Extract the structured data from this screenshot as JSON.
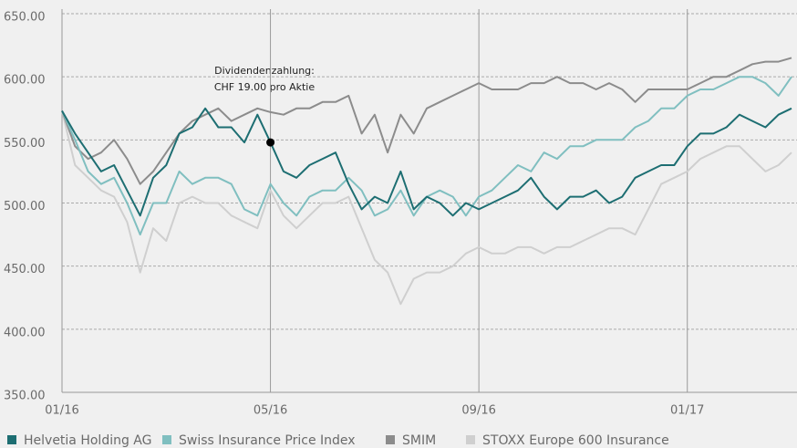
{
  "chart_data": {
    "type": "line",
    "annotation": [
      "Dividendenzahlung:",
      "CHF 19.00 pro Aktie"
    ],
    "annotation_point": "Helvetia Holding AG",
    "categories": [
      "01/16",
      null,
      null,
      null,
      null,
      null,
      null,
      null,
      null,
      null,
      null,
      null,
      null,
      null,
      null,
      null,
      "05/16",
      null,
      null,
      null,
      null,
      null,
      null,
      null,
      null,
      null,
      null,
      null,
      null,
      null,
      null,
      null,
      "09/16",
      null,
      null,
      null,
      null,
      null,
      null,
      null,
      null,
      null,
      null,
      null,
      null,
      null,
      null,
      null,
      "01/17",
      null,
      null,
      null,
      null,
      null,
      null,
      null,
      null
    ],
    "ylim": [
      350,
      650
    ],
    "yticks": [
      {
        "value": 350,
        "label": "350.00"
      },
      {
        "value": 400,
        "label": "400.00"
      },
      {
        "value": 450,
        "label": "450.00"
      },
      {
        "value": 500,
        "label": "500.00"
      },
      {
        "value": 550,
        "label": "550.00"
      },
      {
        "value": 600,
        "label": "600.00"
      },
      {
        "value": 650,
        "label": "650.00"
      }
    ],
    "grid": true,
    "legend": "bottom",
    "series": [
      {
        "name": "Helvetia Holding AG",
        "color": "#1d6e72",
        "values": [
          573,
          555,
          540,
          525,
          530,
          510,
          490,
          520,
          530,
          555,
          560,
          575,
          560,
          560,
          548,
          570,
          548,
          525,
          520,
          530,
          535,
          540,
          515,
          495,
          505,
          500,
          525,
          495,
          505,
          500,
          490,
          500,
          495,
          500,
          505,
          510,
          520,
          505,
          495,
          505,
          505,
          510,
          500,
          505,
          520,
          525,
          530,
          530,
          545,
          555,
          555,
          560,
          570,
          565,
          560,
          570,
          575
        ]
      },
      {
        "name": "Swiss Insurance Price Index",
        "color": "#80bfc0",
        "values": [
          573,
          550,
          525,
          515,
          520,
          500,
          475,
          500,
          500,
          525,
          515,
          520,
          520,
          515,
          495,
          490,
          515,
          500,
          490,
          505,
          510,
          510,
          520,
          510,
          490,
          495,
          510,
          490,
          505,
          510,
          505,
          490,
          505,
          510,
          520,
          530,
          525,
          540,
          535,
          545,
          545,
          550,
          550,
          550,
          560,
          565,
          575,
          575,
          585,
          590,
          590,
          595,
          600,
          600,
          595,
          585,
          600
        ]
      },
      {
        "name": "SMIM",
        "color": "#8c8c8c",
        "values": [
          573,
          545,
          535,
          540,
          550,
          535,
          515,
          525,
          540,
          555,
          565,
          570,
          575,
          565,
          570,
          575,
          572,
          570,
          575,
          575,
          580,
          580,
          585,
          555,
          570,
          540,
          570,
          555,
          575,
          580,
          585,
          590,
          595,
          590,
          590,
          590,
          595,
          595,
          600,
          595,
          595,
          590,
          595,
          590,
          580,
          590,
          590,
          590,
          590,
          595,
          600,
          600,
          605,
          610,
          612,
          612,
          615
        ]
      },
      {
        "name": "STOXX Europe 600 Insurance",
        "color": "#cfcfcf",
        "values": [
          573,
          530,
          520,
          510,
          505,
          485,
          445,
          480,
          470,
          500,
          505,
          500,
          500,
          490,
          485,
          480,
          510,
          490,
          480,
          490,
          500,
          500,
          505,
          480,
          455,
          445,
          420,
          440,
          445,
          445,
          450,
          460,
          465,
          460,
          460,
          465,
          465,
          460,
          465,
          465,
          470,
          475,
          480,
          480,
          475,
          495,
          515,
          520,
          525,
          535,
          540,
          545,
          545,
          535,
          525,
          530,
          540
        ]
      }
    ]
  }
}
